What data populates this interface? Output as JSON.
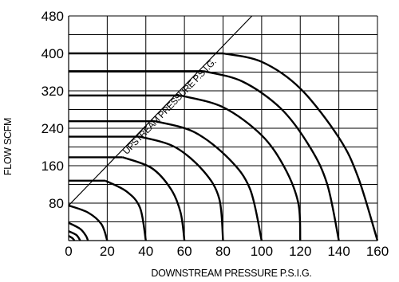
{
  "chart_data": {
    "type": "line",
    "title": "",
    "xlabel": "DOWNSTREAM PRESSURE  P.S.I.G.",
    "ylabel": "FLOW SCFM",
    "xlim": [
      0,
      160
    ],
    "ylim": [
      0,
      480
    ],
    "x_ticks": [
      "0",
      "20",
      "40",
      "60",
      "80",
      "100",
      "120",
      "140",
      "160"
    ],
    "y_ticks": [
      "80",
      "160",
      "240",
      "320",
      "400",
      "480"
    ],
    "y_tick_values": [
      80,
      160,
      240,
      320,
      400,
      480
    ],
    "grid": true,
    "annotation": "UPSTREAM PRESSURE P.S.I.G.",
    "diagonal_line": [
      [
        0,
        75
      ],
      [
        95,
        480
      ]
    ],
    "series": [
      {
        "flat": [
          [
            0,
            400
          ],
          [
            80,
            400
          ]
        ],
        "curve": [
          [
            80,
            400
          ],
          [
            100,
            382
          ],
          [
            120,
            325
          ],
          [
            140,
            220
          ],
          [
            150,
            135
          ],
          [
            160,
            0
          ]
        ]
      },
      {
        "flat": [
          [
            0,
            362
          ],
          [
            70,
            362
          ]
        ],
        "curve": [
          [
            70,
            362
          ],
          [
            90,
            340
          ],
          [
            110,
            282
          ],
          [
            125,
            200
          ],
          [
            134,
            120
          ],
          [
            140,
            0
          ]
        ]
      },
      {
        "flat": [
          [
            0,
            310
          ],
          [
            58,
            310
          ]
        ],
        "curve": [
          [
            58,
            310
          ],
          [
            80,
            285
          ],
          [
            100,
            225
          ],
          [
            112,
            155
          ],
          [
            119,
            80
          ],
          [
            120,
            0
          ]
        ]
      },
      {
        "flat": [
          [
            0,
            255
          ],
          [
            45,
            255
          ]
        ],
        "curve": [
          [
            45,
            255
          ],
          [
            65,
            232
          ],
          [
            83,
            175
          ],
          [
            94,
            110
          ],
          [
            100,
            0
          ]
        ]
      },
      {
        "flat": [
          [
            0,
            222
          ],
          [
            37,
            222
          ]
        ],
        "curve": [
          [
            37,
            222
          ],
          [
            55,
            200
          ],
          [
            70,
            148
          ],
          [
            78,
            90
          ],
          [
            80,
            0
          ]
        ]
      },
      {
        "flat": [
          [
            0,
            178
          ],
          [
            28,
            178
          ]
        ],
        "curve": [
          [
            28,
            178
          ],
          [
            43,
            155
          ],
          [
            53,
            110
          ],
          [
            58,
            60
          ],
          [
            60,
            0
          ]
        ]
      },
      {
        "flat": [
          [
            0,
            128
          ],
          [
            19,
            128
          ]
        ],
        "curve": [
          [
            19,
            128
          ],
          [
            30,
            105
          ],
          [
            37,
            70
          ],
          [
            40,
            0
          ]
        ]
      },
      {
        "flat": [],
        "curve": [
          [
            0,
            75
          ],
          [
            10,
            60
          ],
          [
            17,
            35
          ],
          [
            20,
            0
          ]
        ]
      },
      {
        "flat": [],
        "curve": [
          [
            0,
            38
          ],
          [
            6,
            25
          ],
          [
            9,
            10
          ],
          [
            10,
            0
          ]
        ]
      },
      {
        "flat": [],
        "curve": [
          [
            0,
            20
          ],
          [
            4,
            12
          ],
          [
            6,
            0
          ]
        ]
      },
      {
        "flat": [],
        "curve": [
          [
            0,
            10
          ],
          [
            2,
            5
          ],
          [
            3,
            0
          ]
        ]
      }
    ]
  }
}
